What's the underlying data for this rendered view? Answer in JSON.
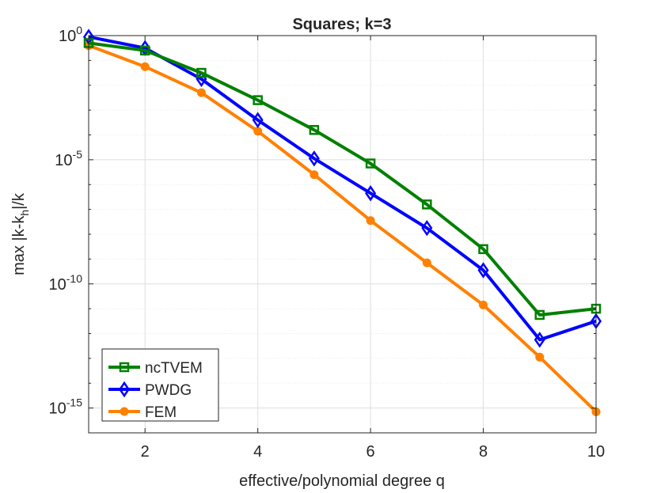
{
  "chart_data": {
    "type": "line",
    "title": "Squares; k=3",
    "xlabel": "effective/polynomial degree q",
    "ylabel_main": "max |k-k",
    "ylabel_sub": "h",
    "ylabel_tail": "|/k",
    "yscale": "log",
    "xlim": [
      1,
      10
    ],
    "ylim_exp": [
      -16,
      0
    ],
    "grid": true,
    "legend_position": "bottom-left",
    "xticks": [
      {
        "value": 2,
        "label": "2"
      },
      {
        "value": 4,
        "label": "4"
      },
      {
        "value": 6,
        "label": "6"
      },
      {
        "value": 8,
        "label": "8"
      },
      {
        "value": 10,
        "label": "10"
      }
    ],
    "yticks": [
      {
        "exp": 0,
        "base": "10",
        "sup": "0"
      },
      {
        "exp": -5,
        "base": "10",
        "sup": "-5"
      },
      {
        "exp": -10,
        "base": "10",
        "sup": "-10"
      },
      {
        "exp": -15,
        "base": "10",
        "sup": "-15"
      }
    ],
    "x": [
      1,
      2,
      3,
      4,
      5,
      6,
      7,
      8,
      9,
      10
    ],
    "series": [
      {
        "name": "ncTVEM",
        "marker": "square",
        "color": "#008000",
        "log10_values": [
          -0.3,
          -0.6,
          -1.5,
          -2.6,
          -3.8,
          -5.15,
          -6.8,
          -8.6,
          -11.25,
          -11.0
        ]
      },
      {
        "name": "PWDG",
        "marker": "diamond",
        "color": "#0000ff",
        "log10_values": [
          -0.05,
          -0.5,
          -1.75,
          -3.4,
          -4.95,
          -6.35,
          -7.75,
          -9.45,
          -12.25,
          -11.5
        ]
      },
      {
        "name": "FEM",
        "marker": "circle",
        "color": "#ff8000",
        "log10_values": [
          -0.4,
          -1.25,
          -2.3,
          -3.85,
          -5.6,
          -7.45,
          -9.15,
          -10.85,
          -12.95,
          -15.15
        ]
      }
    ]
  }
}
